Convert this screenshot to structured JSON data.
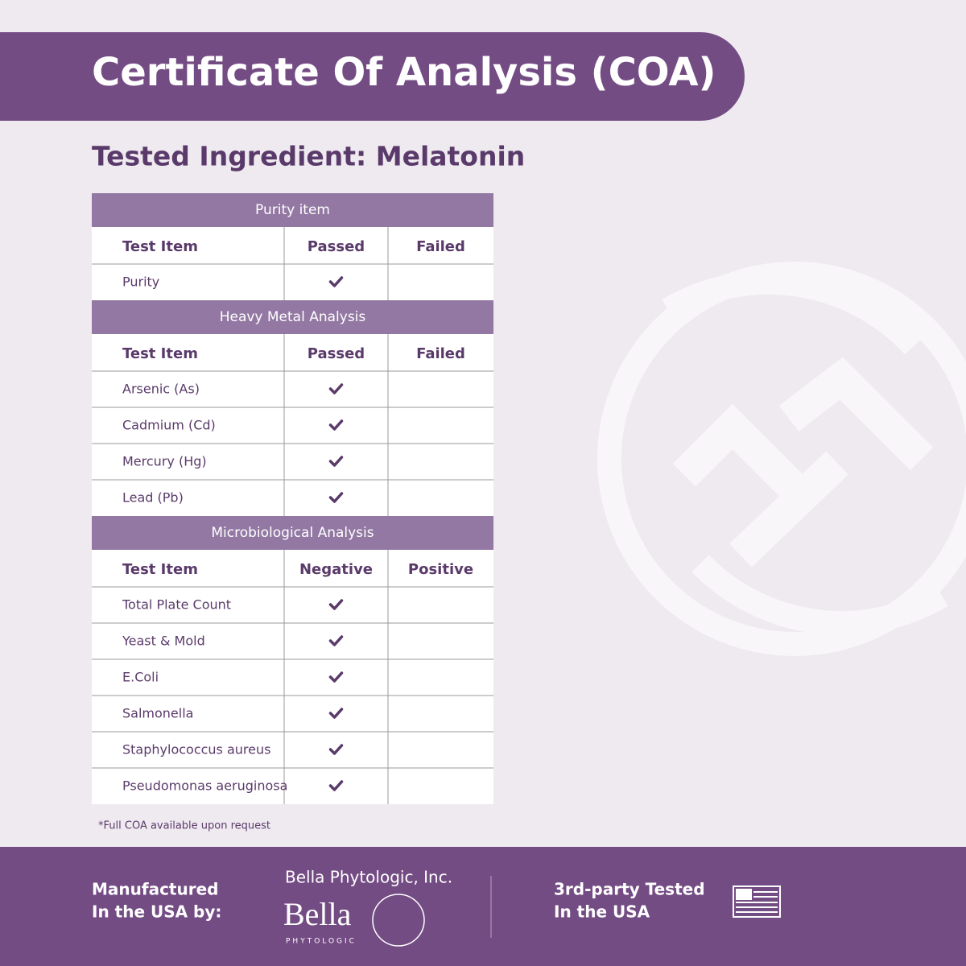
{
  "header": {
    "title": "Certificate Of Analysis (COA)",
    "subtitle": "Tested Ingredient: Melatonin"
  },
  "table": {
    "sections": [
      {
        "title": "Purity item",
        "columns": [
          "Test Item",
          "Passed",
          "Failed"
        ],
        "rows": [
          "Purity"
        ]
      },
      {
        "title": "Heavy Metal Analysis",
        "columns": [
          "Test Item",
          "Passed",
          "Failed"
        ],
        "rows": [
          "Arsenic (As)",
          "Cadmium (Cd)",
          "Mercury (Hg)",
          "Lead (Pb)"
        ]
      },
      {
        "title": "Microbiological Analysis",
        "columns": [
          "Test Item",
          "Negative",
          "Positive"
        ],
        "rows": [
          "Total Plate Count",
          "Yeast & Mold",
          "E.Coli",
          "Salmonella",
          "Staphylococcus aureus",
          "Pseudomonas aeruginosa"
        ]
      }
    ]
  },
  "note": "*Full COA available upon request",
  "footer": {
    "manufactured": [
      "Manufactured",
      "In the USA by:"
    ],
    "company": "Bella Phytologic, Inc.",
    "logo": "Bella",
    "logo_sub": "PHYTOLOGIC",
    "tested": [
      "3rd-party Tested",
      "In the USA"
    ]
  }
}
